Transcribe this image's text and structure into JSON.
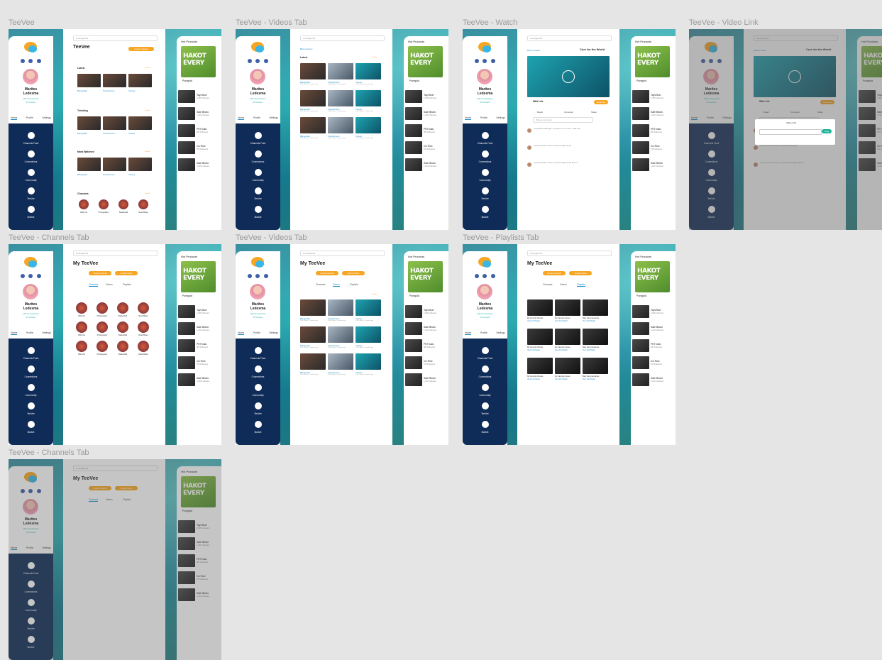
{
  "frames": [
    {
      "id": "f1",
      "label": "TeeVee",
      "variant": "home"
    },
    {
      "id": "f2",
      "label": "TeeVee - Videos Tab",
      "variant": "videos-latest"
    },
    {
      "id": "f3",
      "label": "TeeVee - Watch",
      "variant": "watch"
    },
    {
      "id": "f4",
      "label": "TeeVee - Video Link",
      "variant": "watch-modal"
    },
    {
      "id": "f5",
      "label": "TeeVee - Channels Tab",
      "variant": "channels"
    },
    {
      "id": "f6",
      "label": "TeeVee - Videos Tab",
      "variant": "my-videos"
    },
    {
      "id": "f7",
      "label": "TeeVee - Playlists Tab",
      "variant": "playlists"
    },
    {
      "id": "f8",
      "label": "TeeVee - Channels Tab",
      "variant": "channels-partial"
    }
  ],
  "profile": {
    "first_name": "Marites",
    "last_name": "Ledesma",
    "connections": "128 Connections",
    "groups": "23 Groups",
    "tabs": [
      "Home",
      "Profile",
      "Settings"
    ],
    "nav": [
      "Channels Feed",
      "Connections",
      "Community",
      "TeeVee",
      "Market"
    ]
  },
  "search_placeholder": "smartyjam24",
  "hot_products": {
    "title": "Hot Products",
    "promo": [
      "HAKOT",
      "EVERY"
    ],
    "promo_name": "Puregold",
    "items": [
      {
        "name": "Tays Burr",
        "sub": "2,456 Followers"
      },
      {
        "name": "Sale Bistro",
        "sub": "1,234 Followers"
      },
      {
        "name": "PETmalu",
        "sub": "987 Followers"
      },
      {
        "name": "Go Rice",
        "sub": "876 Followers"
      },
      {
        "name": "Sale Bistro",
        "sub": "1,234 Followers"
      }
    ]
  },
  "home": {
    "title": "TeeVee",
    "sections": [
      "Latest",
      "Trending",
      "Most Watched",
      "Channels"
    ],
    "see_all": "See All"
  },
  "videos": {
    "back": "Back to Home",
    "latest": "Latest",
    "sort": "Sort By",
    "titles": [
      "Bangoptiks",
      "Transformers",
      "Chucky"
    ],
    "meta": "1.8K Views | 2 weeks ago"
  },
  "watch": {
    "back": "Back to videos",
    "title": "Cure for the World",
    "channel": "Wild Life",
    "subscribe": "Subscribe",
    "actions": [
      "React",
      "Comment",
      "Share"
    ],
    "comment_placeholder": "Write a comment",
    "comments": [
      "You got all the words right... you just lose me in a prior... Good show.",
      "Lorem ipsum dolor sit amet, consectetur adipiscing elit.",
      "Lorem ipsum dolor sit amet, consectetur adipiscing elit. Metus in."
    ]
  },
  "modal": {
    "title": "Video Link",
    "button": "Copy"
  },
  "my_teevee": {
    "title": "My TeeVee",
    "buttons": [
      "Create Channel",
      "Upload Video"
    ],
    "tabs": [
      "Channels",
      "Videos",
      "Playlists"
    ],
    "channels": [
      "Wild Life",
      "Photography",
      "Basketball",
      "Road Bikes"
    ]
  },
  "playlists": {
    "labels": [
      "My Favorite Movies",
      "My Favorite Series",
      "Best Documentaries"
    ],
    "link": "View Full Playlist"
  }
}
